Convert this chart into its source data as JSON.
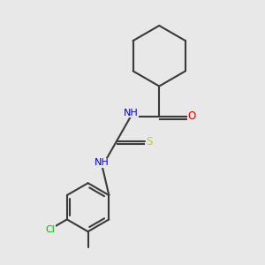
{
  "bg_color": "#e8e8e8",
  "bond_color": "#3a3a3a",
  "bond_width": 1.5,
  "atom_colors": {
    "N": "#0000ee",
    "O": "#ee0000",
    "S": "#cccc00",
    "Cl": "#00bb00",
    "C": "#3a3a3a"
  },
  "font_size": 8.0,
  "fig_size": [
    3.0,
    3.0
  ],
  "dpi": 100
}
